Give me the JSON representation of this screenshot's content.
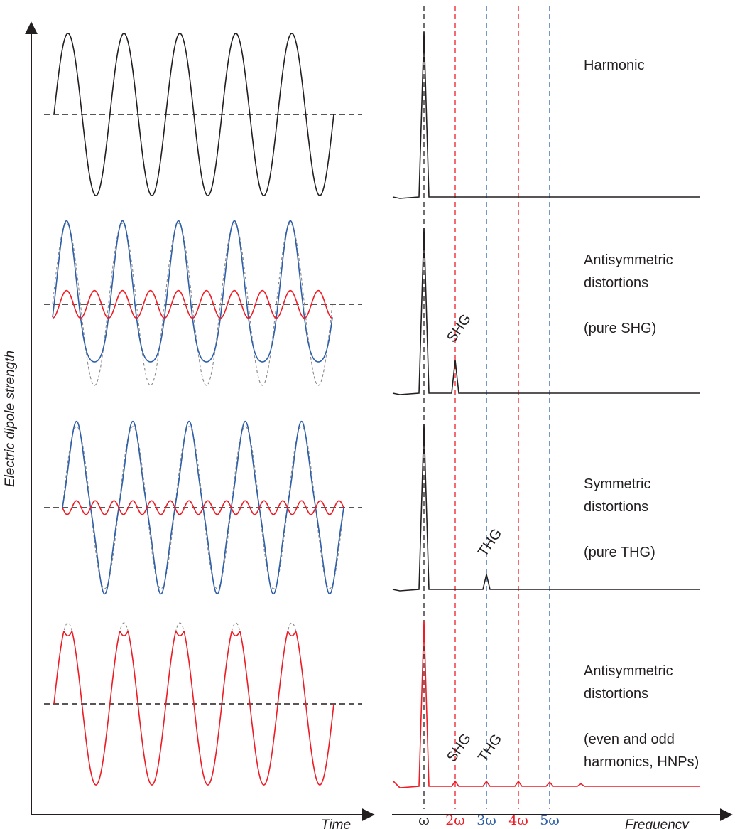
{
  "colors": {
    "axis": "#231f20",
    "harmonic": "#231f20",
    "dashed_ref": "#888888",
    "blue": "#2e5fa8",
    "red": "#ee1c25"
  },
  "axes": {
    "y_label": "Electric dipole strength",
    "time_label": "Time",
    "frequency_label": "Frequency"
  },
  "frequency_ticks": [
    {
      "label": "ω",
      "multiple": 1,
      "color": "#231f20"
    },
    {
      "label": "2ω",
      "multiple": 2,
      "color": "#ee1c25"
    },
    {
      "label": "3ω",
      "multiple": 3,
      "color": "#2e5fa8"
    },
    {
      "label": "4ω",
      "multiple": 4,
      "color": "#ee1c25"
    },
    {
      "label": "5ω",
      "multiple": 5,
      "color": "#2e5fa8"
    }
  ],
  "rows": [
    {
      "key": "harmonic",
      "label_lines": [
        "Harmonic"
      ],
      "time_waves": [
        {
          "kind": "fundamental",
          "color": "#231f20"
        }
      ],
      "spectrum": {
        "color": "#231f20",
        "peaks": [
          {
            "multiple": 1,
            "height": 1.0
          }
        ],
        "tags": []
      }
    },
    {
      "key": "antisymmetric-pure-shg",
      "label_lines": [
        "Antisymmetric",
        "distortions",
        "",
        "(pure SHG)"
      ],
      "time_waves": [
        {
          "kind": "reference",
          "color": "#888888"
        },
        {
          "kind": "distorted-antisym",
          "color": "#2e5fa8"
        },
        {
          "kind": "second-harmonic",
          "color": "#ee1c25"
        }
      ],
      "spectrum": {
        "color": "#231f20",
        "peaks": [
          {
            "multiple": 1,
            "height": 1.0
          },
          {
            "multiple": 2,
            "height": 0.2
          }
        ],
        "tags": [
          {
            "text": "SHG",
            "color": "#ee1c25",
            "multiple": 2
          }
        ]
      }
    },
    {
      "key": "symmetric-pure-thg",
      "label_lines": [
        "Symmetric",
        "distortions",
        "",
        "(pure THG)"
      ],
      "time_waves": [
        {
          "kind": "reference",
          "color": "#888888"
        },
        {
          "kind": "distorted-sym",
          "color": "#2e5fa8"
        },
        {
          "kind": "third-harmonic",
          "color": "#ee1c25"
        }
      ],
      "spectrum": {
        "color": "#231f20",
        "peaks": [
          {
            "multiple": 1,
            "height": 1.0
          },
          {
            "multiple": 3,
            "height": 0.09
          }
        ],
        "tags": [
          {
            "text": "THG",
            "color": "#2e5fa8",
            "multiple": 3
          }
        ]
      }
    },
    {
      "key": "antisymmetric-even-odd",
      "label_lines": [
        "Antisymmetric",
        "distortions",
        "",
        "(even and odd",
        "harmonics, HNPs)"
      ],
      "time_waves": [
        {
          "kind": "reference",
          "color": "#888888"
        },
        {
          "kind": "clipped",
          "color": "#ee1c25"
        }
      ],
      "spectrum": {
        "color": "#ee1c25",
        "peaks": [
          {
            "multiple": 1,
            "height": 1.0
          },
          {
            "multiple": 2,
            "height": 0.03
          },
          {
            "multiple": 3,
            "height": 0.03
          },
          {
            "multiple": 4,
            "height": 0.03
          },
          {
            "multiple": 5,
            "height": 0.025
          },
          {
            "multiple": 6,
            "height": 0.015
          }
        ],
        "tags": [
          {
            "text": "SHG",
            "color": "#ee1c25",
            "multiple": 2
          },
          {
            "text": "THG",
            "color": "#2e5fa8",
            "multiple": 3
          }
        ]
      }
    }
  ]
}
